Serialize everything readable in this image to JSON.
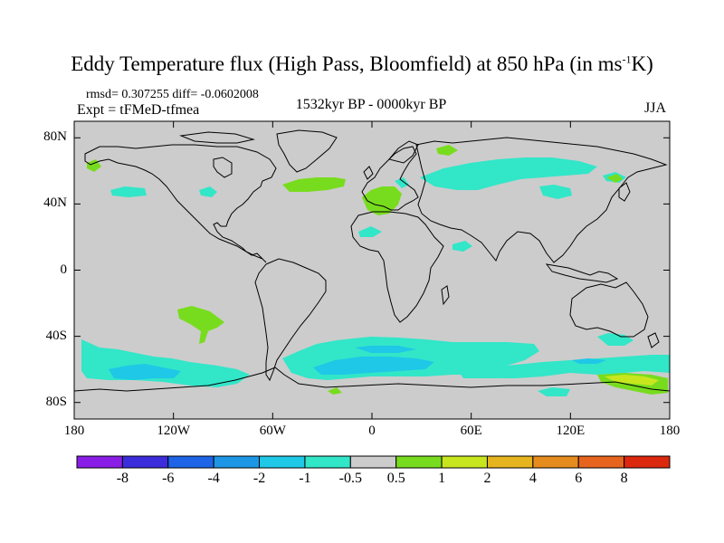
{
  "title": {
    "main": "Eddy Temperature flux (High Pass, Bloomfield) at 850 hPa (in ms",
    "superscript": "-1",
    "suffix": "K)"
  },
  "stats": "rmsd= 0.307255 diff= -0.0602008",
  "experiment": "Expt = tFMeD-tfmea",
  "period": "1532kyr BP - 0000kyr BP",
  "season": "JJA",
  "map": {
    "projection": "cylindrical equidistant",
    "lon_range": [
      -180,
      180
    ],
    "lat_range": [
      -90,
      90
    ],
    "background_color": "#cccccc",
    "y_ticks": [
      {
        "value": 80,
        "label": "80N"
      },
      {
        "value": 40,
        "label": "40N"
      },
      {
        "value": 0,
        "label": "0"
      },
      {
        "value": -40,
        "label": "40S"
      },
      {
        "value": -80,
        "label": "80S"
      }
    ],
    "x_ticks": [
      {
        "value": -180,
        "label": "180"
      },
      {
        "value": -120,
        "label": "120W"
      },
      {
        "value": -60,
        "label": "60W"
      },
      {
        "value": 0,
        "label": "0"
      },
      {
        "value": 60,
        "label": "60E"
      },
      {
        "value": 120,
        "label": "120E"
      },
      {
        "value": 180,
        "label": "180"
      }
    ]
  },
  "colorbar": {
    "levels": [
      "-8",
      "-6",
      "-4",
      "-2",
      "-1",
      "-0.5",
      "0.5",
      "1",
      "2",
      "4",
      "6",
      "8"
    ],
    "colors": [
      "#8a1ee6",
      "#3c2ddc",
      "#1e64e6",
      "#1e96e6",
      "#1ec8e6",
      "#32e6c8",
      "#cccccc",
      "#78dc1e",
      "#c8e61e",
      "#e6b41e",
      "#e68c1e",
      "#e6641e",
      "#dc280f"
    ]
  }
}
